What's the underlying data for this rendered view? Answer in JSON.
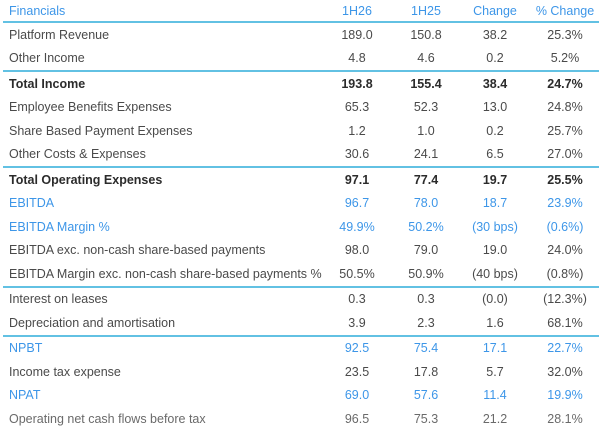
{
  "header": {
    "label": "Financials",
    "col1": "1H26",
    "col2": "1H25",
    "col3": "Change",
    "col4": "% Change"
  },
  "rows": [
    {
      "label": "Platform Revenue",
      "v1": "189.0",
      "v2": "150.8",
      "v3": "38.2",
      "v4": "25.3%"
    },
    {
      "label": "Other Income",
      "v1": "4.8",
      "v2": "4.6",
      "v3": "0.2",
      "v4": "5.2%"
    },
    {
      "label": "Total Income",
      "v1": "193.8",
      "v2": "155.4",
      "v3": "38.4",
      "v4": "24.7%"
    },
    {
      "label": "Employee Benefits Expenses",
      "v1": "65.3",
      "v2": "52.3",
      "v3": "13.0",
      "v4": "24.8%"
    },
    {
      "label": "Share Based Payment Expenses",
      "v1": "1.2",
      "v2": "1.0",
      "v3": "0.2",
      "v4": "25.7%"
    },
    {
      "label": "Other Costs & Expenses",
      "v1": "30.6",
      "v2": "24.1",
      "v3": "6.5",
      "v4": "27.0%"
    },
    {
      "label": "Total Operating Expenses",
      "v1": "97.1",
      "v2": "77.4",
      "v3": "19.7",
      "v4": "25.5%"
    },
    {
      "label": "EBITDA",
      "v1": "96.7",
      "v2": "78.0",
      "v3": "18.7",
      "v4": "23.9%"
    },
    {
      "label": "EBITDA Margin %",
      "v1": "49.9%",
      "v2": "50.2%",
      "v3": "(30 bps)",
      "v4": "(0.6%)"
    },
    {
      "label": "EBITDA exc. non-cash share-based payments",
      "v1": "98.0",
      "v2": "79.0",
      "v3": "19.0",
      "v4": "24.0%"
    },
    {
      "label": "EBITDA Margin exc. non-cash share-based payments %",
      "v1": "50.5%",
      "v2": "50.9%",
      "v3": "(40 bps)",
      "v4": "(0.8%)"
    },
    {
      "label": "Interest on leases",
      "v1": "0.3",
      "v2": "0.3",
      "v3": "(0.0)",
      "v4": "(12.3%)"
    },
    {
      "label": "Depreciation and amortisation",
      "v1": "3.9",
      "v2": "2.3",
      "v3": "1.6",
      "v4": "68.1%"
    },
    {
      "label": "NPBT",
      "v1": "92.5",
      "v2": "75.4",
      "v3": "17.1",
      "v4": "22.7%"
    },
    {
      "label": "Income tax expense",
      "v1": "23.5",
      "v2": "17.8",
      "v3": "5.7",
      "v4": "32.0%"
    },
    {
      "label": "NPAT",
      "v1": "69.0",
      "v2": "57.6",
      "v3": "11.4",
      "v4": "19.9%"
    },
    {
      "label": "Operating net cash flows before tax",
      "v1": "96.5",
      "v2": "75.3",
      "v3": "21.2",
      "v4": "28.1%"
    }
  ],
  "colors": {
    "accent": "#3d96e8",
    "rule": "#62c1e3",
    "text": "#4a4a4a"
  }
}
